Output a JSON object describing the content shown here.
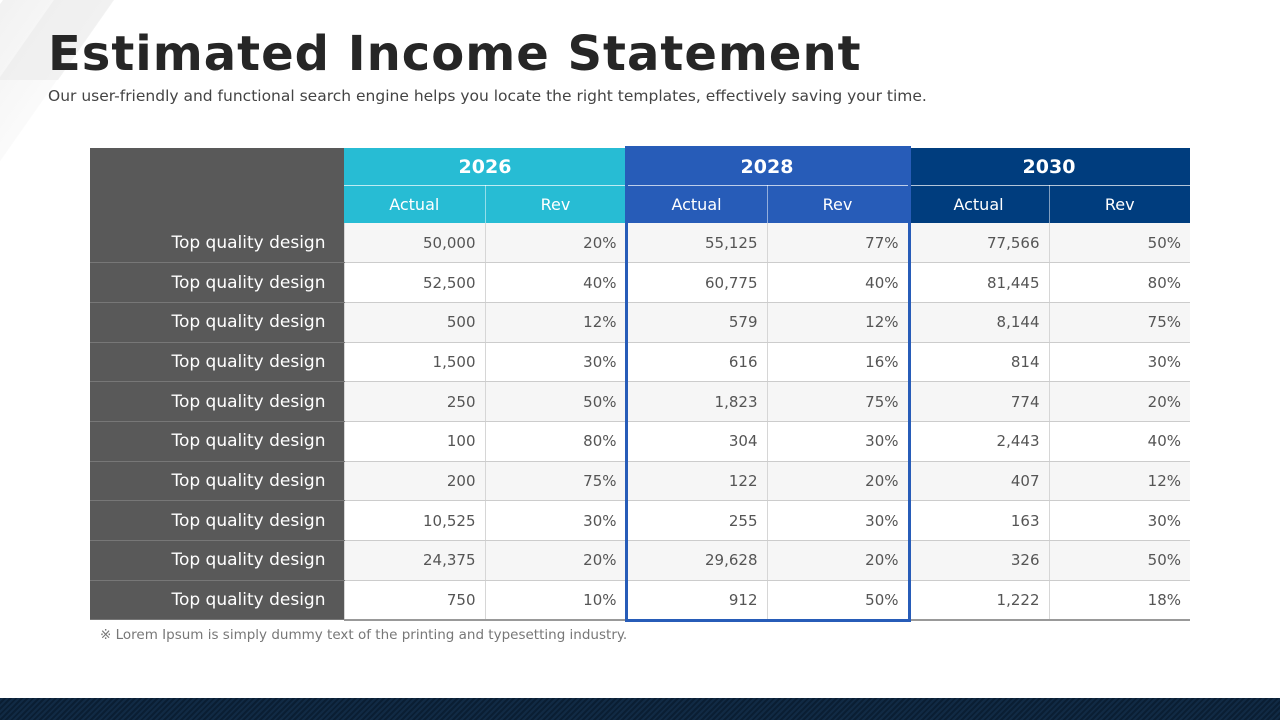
{
  "title": "Estimated Income Statement",
  "subtitle": "Our user-friendly  and functional search engine helps you locate the right templates, effectively saving your time.",
  "colors": {
    "y2026": "#27bcd4",
    "y2028": "#275cb8",
    "y2030": "#003d7e",
    "label_col": "#595959"
  },
  "table": {
    "years": [
      "2026",
      "2028",
      "2030"
    ],
    "sub_headers": [
      "Actual",
      "Rev",
      "Actual",
      "Rev",
      "Actual",
      "Rev"
    ],
    "highlighted_year": "2028",
    "rows": [
      {
        "label": "Top quality design",
        "values": [
          "50,000",
          "20%",
          "55,125",
          "77%",
          "77,566",
          "50%"
        ]
      },
      {
        "label": "Top quality design",
        "values": [
          "52,500",
          "40%",
          "60,775",
          "40%",
          "81,445",
          "80%"
        ]
      },
      {
        "label": "Top quality design",
        "values": [
          "500",
          "12%",
          "579",
          "12%",
          "8,144",
          "75%"
        ]
      },
      {
        "label": "Top quality design",
        "values": [
          "1,500",
          "30%",
          "616",
          "16%",
          "814",
          "30%"
        ]
      },
      {
        "label": "Top quality design",
        "values": [
          "250",
          "50%",
          "1,823",
          "75%",
          "774",
          "20%"
        ]
      },
      {
        "label": "Top quality design",
        "values": [
          "100",
          "80%",
          "304",
          "30%",
          "2,443",
          "40%"
        ]
      },
      {
        "label": "Top quality design",
        "values": [
          "200",
          "75%",
          "122",
          "20%",
          "407",
          "12%"
        ]
      },
      {
        "label": "Top quality design",
        "values": [
          "10,525",
          "30%",
          "255",
          "30%",
          "163",
          "30%"
        ]
      },
      {
        "label": "Top quality design",
        "values": [
          "24,375",
          "20%",
          "29,628",
          "20%",
          "326",
          "50%"
        ]
      },
      {
        "label": "Top quality design",
        "values": [
          "750",
          "10%",
          "912",
          "50%",
          "1,222",
          "18%"
        ]
      }
    ]
  },
  "note": "※ Lorem Ipsum is simply dummy text of the printing and typesetting industry."
}
